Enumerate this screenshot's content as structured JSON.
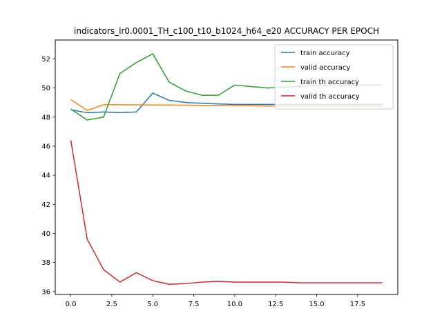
{
  "chart_data": {
    "type": "line",
    "title": "indicators_lr0.0001_TH_c100_t10_b1024_h64_e20 ACCURACY PER EPOCH",
    "xlabel": "",
    "ylabel": "",
    "xlim": [
      -0.95,
      19.95
    ],
    "ylim": [
      35.8,
      53.3
    ],
    "xticks": [
      0,
      2.5,
      5,
      7.5,
      10,
      12.5,
      15,
      17.5
    ],
    "xtick_labels": [
      "0.0",
      "2.5",
      "5.0",
      "7.5",
      "10.0",
      "12.5",
      "15.0",
      "17.5"
    ],
    "yticks": [
      36,
      38,
      40,
      42,
      44,
      46,
      48,
      50,
      52
    ],
    "ytick_labels": [
      "36",
      "38",
      "40",
      "42",
      "44",
      "46",
      "48",
      "50",
      "52"
    ],
    "grid": false,
    "legend_position": "top-right",
    "x": [
      0,
      1,
      2,
      3,
      4,
      5,
      6,
      7,
      8,
      9,
      10,
      11,
      12,
      13,
      14,
      15,
      16,
      17,
      18,
      19
    ],
    "series": [
      {
        "name": "train accuracy",
        "color": "#1f77b4",
        "values": [
          48.5,
          48.3,
          48.35,
          48.3,
          48.35,
          49.65,
          49.15,
          49.0,
          48.95,
          48.9,
          48.87,
          48.87,
          48.87,
          48.87,
          48.87,
          48.87,
          48.87,
          48.87,
          48.87,
          48.87
        ]
      },
      {
        "name": "valid accuracy",
        "color": "#ff7f0e",
        "values": [
          49.2,
          48.45,
          48.85,
          48.85,
          48.84,
          48.83,
          48.83,
          48.82,
          48.8,
          48.78,
          48.77,
          48.77,
          48.76,
          48.76,
          48.76,
          48.76,
          48.76,
          48.76,
          48.76,
          48.76
        ]
      },
      {
        "name": "train th accuracy",
        "color": "#2ca02c",
        "values": [
          48.55,
          47.8,
          48.0,
          51.0,
          51.75,
          52.35,
          50.4,
          49.8,
          49.5,
          49.5,
          50.2,
          50.1,
          50.0,
          50.05,
          50.1,
          50.2,
          50.2,
          50.2,
          50.2,
          50.2
        ]
      },
      {
        "name": "valid th accuracy",
        "color": "#d62728",
        "values": [
          46.4,
          39.6,
          37.5,
          36.65,
          37.3,
          36.75,
          36.5,
          36.55,
          36.65,
          36.7,
          36.65,
          36.65,
          36.65,
          36.65,
          36.6,
          36.6,
          36.6,
          36.6,
          36.6,
          36.6
        ]
      }
    ]
  }
}
